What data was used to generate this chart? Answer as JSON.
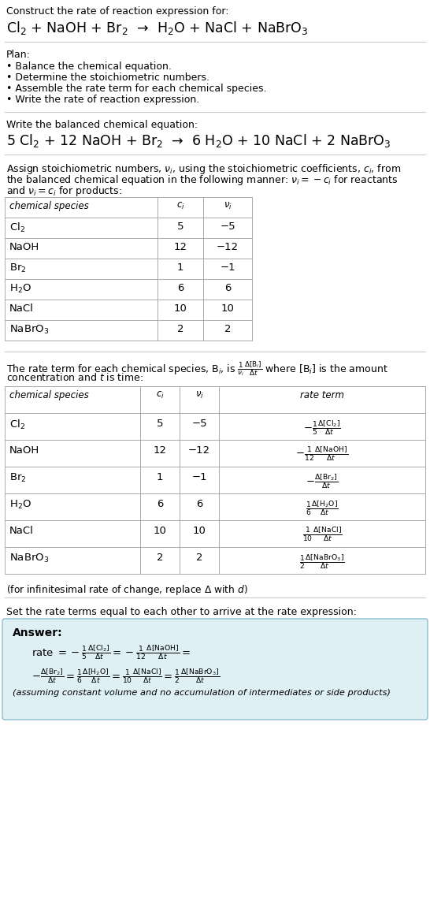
{
  "title": "Construct the rate of reaction expression for:",
  "reaction_unbalanced": "Cl$_2$ + NaOH + Br$_2$  →  H$_2$O + NaCl + NaBrO$_3$",
  "plan_header": "Plan:",
  "plan_items": [
    "• Balance the chemical equation.",
    "• Determine the stoichiometric numbers.",
    "• Assemble the rate term for each chemical species.",
    "• Write the rate of reaction expression."
  ],
  "balanced_header": "Write the balanced chemical equation:",
  "reaction_balanced": "5 Cl$_2$ + 12 NaOH + Br$_2$  →  6 H$_2$O + 10 NaCl + 2 NaBrO$_3$",
  "table1_headers": [
    "chemical species",
    "$c_i$",
    "$\\nu_i$"
  ],
  "table1_rows": [
    [
      "Cl$_2$",
      "5",
      "−5"
    ],
    [
      "NaOH",
      "12",
      "−12"
    ],
    [
      "Br$_2$",
      "1",
      "−1"
    ],
    [
      "H$_2$O",
      "6",
      "6"
    ],
    [
      "NaCl",
      "10",
      "10"
    ],
    [
      "NaBrO$_3$",
      "2",
      "2"
    ]
  ],
  "table2_headers": [
    "chemical species",
    "$c_i$",
    "$\\nu_i$",
    "rate term"
  ],
  "table2_rows": [
    [
      "Cl$_2$",
      "5",
      "−5",
      "$-\\frac{1}{5}\\frac{\\Delta[\\mathrm{Cl}_2]}{\\Delta t}$"
    ],
    [
      "NaOH",
      "12",
      "−12",
      "$-\\frac{1}{12}\\frac{\\Delta[\\mathrm{NaOH}]}{\\Delta t}$"
    ],
    [
      "Br$_2$",
      "1",
      "−1",
      "$-\\frac{\\Delta[\\mathrm{Br}_2]}{\\Delta t}$"
    ],
    [
      "H$_2$O",
      "6",
      "6",
      "$\\frac{1}{6}\\frac{\\Delta[\\mathrm{H_2O}]}{\\Delta t}$"
    ],
    [
      "NaCl",
      "10",
      "10",
      "$\\frac{1}{10}\\frac{\\Delta[\\mathrm{NaCl}]}{\\Delta t}$"
    ],
    [
      "NaBrO$_3$",
      "2",
      "2",
      "$\\frac{1}{2}\\frac{\\Delta[\\mathrm{NaBrO_3}]}{\\Delta t}$"
    ]
  ],
  "infinitesimal_note": "(for infinitesimal rate of change, replace Δ with $d$)",
  "set_equal_header": "Set the rate terms equal to each other to arrive at the rate expression:",
  "answer_label": "Answer:",
  "bg_color": "#ffffff",
  "answer_box_color": "#dff0f5",
  "answer_box_border": "#8bbccc",
  "table_border_color": "#aaaaaa",
  "sep_line_color": "#cccccc"
}
